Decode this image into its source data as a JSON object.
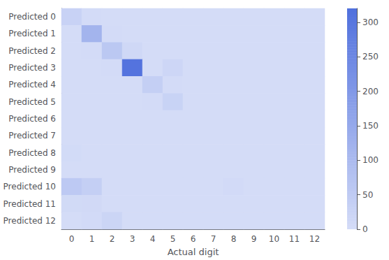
{
  "chart_data": {
    "type": "heatmap",
    "xlabel": "Actual digit",
    "categories": [
      "0",
      "1",
      "2",
      "3",
      "4",
      "5",
      "6",
      "7",
      "8",
      "9",
      "10",
      "11",
      "12"
    ],
    "y_categories": [
      "Predicted 0",
      "Predicted 1",
      "Predicted 2",
      "Predicted 3",
      "Predicted 4",
      "Predicted 5",
      "Predicted 6",
      "Predicted 7",
      "Predicted 8",
      "Predicted 9",
      "Predicted 10",
      "Predicted 11",
      "Predicted 12"
    ],
    "matrix": [
      [
        30,
        2,
        0,
        0,
        0,
        0,
        0,
        0,
        0,
        0,
        0,
        0,
        0
      ],
      [
        0,
        120,
        2,
        0,
        0,
        0,
        0,
        0,
        0,
        0,
        0,
        0,
        0
      ],
      [
        0,
        2,
        60,
        12,
        0,
        0,
        0,
        0,
        0,
        0,
        0,
        0,
        0
      ],
      [
        0,
        0,
        2,
        310,
        0,
        18,
        0,
        0,
        0,
        0,
        0,
        0,
        0
      ],
      [
        0,
        0,
        0,
        0,
        38,
        2,
        0,
        0,
        0,
        0,
        0,
        0,
        0
      ],
      [
        0,
        0,
        0,
        0,
        2,
        28,
        0,
        0,
        0,
        0,
        0,
        0,
        0
      ],
      [
        0,
        0,
        0,
        0,
        0,
        0,
        0,
        0,
        0,
        0,
        0,
        0,
        0
      ],
      [
        0,
        0,
        0,
        0,
        0,
        0,
        0,
        0,
        0,
        0,
        0,
        0,
        0
      ],
      [
        4,
        0,
        0,
        0,
        0,
        0,
        0,
        0,
        0,
        0,
        0,
        0,
        0
      ],
      [
        0,
        0,
        0,
        0,
        0,
        0,
        0,
        0,
        0,
        0,
        0,
        0,
        0
      ],
      [
        55,
        40,
        0,
        0,
        0,
        0,
        0,
        0,
        5,
        0,
        0,
        0,
        0
      ],
      [
        7,
        8,
        0,
        0,
        0,
        0,
        0,
        0,
        0,
        0,
        0,
        0,
        0
      ],
      [
        0,
        5,
        22,
        0,
        0,
        0,
        0,
        0,
        0,
        0,
        0,
        0,
        0
      ]
    ],
    "colorbar_range": [
      0,
      320
    ],
    "colorbar_ticks": [
      0,
      50,
      100,
      150,
      200,
      250,
      300
    ]
  }
}
